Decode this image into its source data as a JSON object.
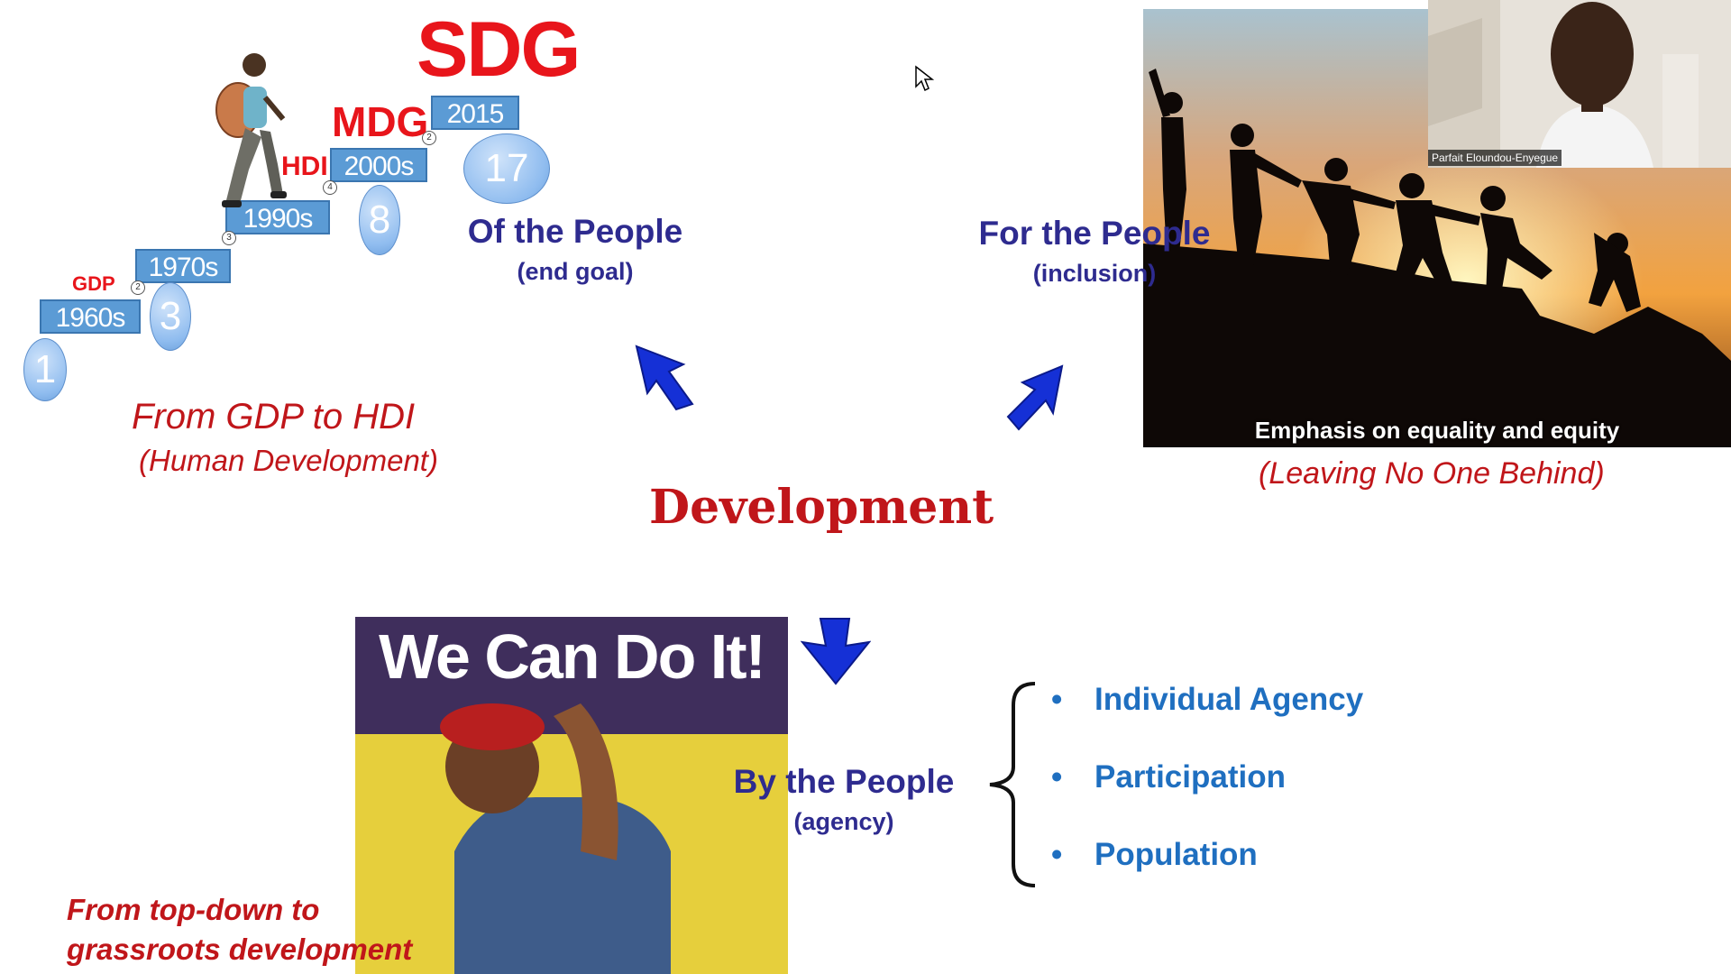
{
  "staircase": {
    "steps": [
      {
        "label": "1960s",
        "circle": "1"
      },
      {
        "label": "1970s",
        "circle": "3"
      },
      {
        "label": "1990s",
        "circle": "8"
      },
      {
        "label": "2000s",
        "circle": "17"
      },
      {
        "label": "2015"
      }
    ],
    "small_markers": [
      "2",
      "3",
      "4",
      "2"
    ],
    "indicators": {
      "gdp": "GDP",
      "hdi": "HDI",
      "mdg": "MDG",
      "sdg": "SDG"
    }
  },
  "of_the_people": {
    "title": "Of the People",
    "subtitle": "(end goal)"
  },
  "for_the_people": {
    "title": "For the People",
    "subtitle": "(inclusion)"
  },
  "by_the_people": {
    "title": "By the People",
    "subtitle": "(agency)"
  },
  "from_gdp": {
    "line1": "From GDP to HDI",
    "line2": "(Human Development)"
  },
  "center_title": "Development",
  "climb_photo": {
    "caption": "Emphasis on equality and equity"
  },
  "leaving_no_one": "(Leaving No One Behind)",
  "poster": {
    "headline": "We Can Do It!"
  },
  "bullets": [
    "Individual Agency",
    "Participation",
    "Population"
  ],
  "grassroots": {
    "line1": "From top-down to",
    "line2": "grassroots development"
  },
  "video": {
    "participant_name": "Parfait Eloundou-Enyegue"
  },
  "colors": {
    "navy": "#2e2b8f",
    "red": "#c0161a",
    "arrow": "#1530d6",
    "bullet": "#1f6fc0"
  }
}
